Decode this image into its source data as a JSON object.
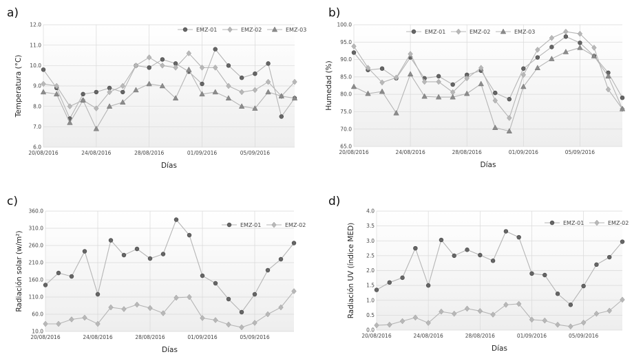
{
  "chart_data": [
    {
      "panel_label": "a)",
      "type": "line",
      "xlabel": "Días",
      "ylabel": "Temperatura (°C)",
      "ylim": [
        6.0,
        12.0
      ],
      "yticks": [
        "6.0",
        "7.0",
        "8.0",
        "9.0",
        "10.0",
        "11.0",
        "12.0"
      ],
      "xtick_labels": [
        "20/08/2016",
        "24/08/2016",
        "28/08/2016",
        "01/09/2016",
        "05/09/2016"
      ],
      "xtick_index": [
        0,
        4,
        8,
        12,
        16
      ],
      "legend_position": "top-right",
      "series": [
        {
          "name": "EMZ-01",
          "marker": "circle",
          "color": "#666666",
          "values": [
            9.8,
            8.9,
            7.4,
            8.6,
            8.7,
            8.9,
            8.7,
            10.0,
            9.9,
            10.3,
            10.1,
            9.7,
            9.1,
            10.8,
            10.0,
            9.4,
            9.6,
            10.1,
            7.5,
            8.4
          ]
        },
        {
          "name": "EMZ-02",
          "marker": "diamond",
          "color": "#b8b8b8",
          "values": [
            9.1,
            9.0,
            8.0,
            8.3,
            7.9,
            8.7,
            9.0,
            10.0,
            10.4,
            10.0,
            9.9,
            10.6,
            9.9,
            9.9,
            9.0,
            8.7,
            8.8,
            9.2,
            8.5,
            9.2
          ]
        },
        {
          "name": "EMZ-03",
          "marker": "triangle",
          "color": "#8c8c8c",
          "values": [
            8.7,
            8.6,
            7.2,
            8.3,
            6.9,
            8.0,
            8.2,
            8.8,
            9.1,
            9.0,
            8.4,
            9.8,
            8.6,
            8.7,
            8.4,
            8.0,
            7.9,
            8.7,
            8.5,
            8.4
          ]
        }
      ]
    },
    {
      "panel_label": "b)",
      "type": "line",
      "xlabel": "Días",
      "ylabel": "Humedad (%)",
      "ylim": [
        65.0,
        100.0
      ],
      "yticks": [
        "65.0",
        "70.0",
        "75.0",
        "80.0",
        "85.0",
        "90.0",
        "95.0",
        "100.0"
      ],
      "xtick_labels": [
        "20/08/2016",
        "24/08/2016",
        "28/08/2016",
        "01/09/2016",
        "05/09/2016"
      ],
      "xtick_index": [
        0,
        4,
        8,
        12,
        16
      ],
      "legend_position": "top-right",
      "series": [
        {
          "name": "EMZ-01",
          "marker": "circle",
          "color": "#666666",
          "values": [
            92.0,
            87.0,
            87.4,
            84.6,
            90.6,
            84.6,
            85.2,
            82.8,
            85.6,
            86.8,
            80.4,
            78.6,
            87.4,
            90.6,
            93.6,
            96.6,
            94.8,
            91.0,
            86.2,
            79.0
          ]
        },
        {
          "name": "EMZ-02",
          "marker": "diamond",
          "color": "#b8b8b8",
          "values": [
            93.8,
            87.6,
            83.4,
            84.8,
            91.6,
            83.6,
            83.6,
            80.6,
            84.6,
            87.6,
            78.2,
            73.2,
            85.6,
            92.8,
            96.2,
            98.0,
            97.4,
            93.4,
            81.4,
            75.8
          ]
        },
        {
          "name": "EMZ-03",
          "marker": "triangle",
          "color": "#8c8c8c",
          "values": [
            82.2,
            80.2,
            80.8,
            74.6,
            85.8,
            79.4,
            79.2,
            79.2,
            80.2,
            83.0,
            70.4,
            69.4,
            82.2,
            87.6,
            90.2,
            92.2,
            93.4,
            91.0,
            85.2,
            75.8
          ]
        }
      ]
    },
    {
      "panel_label": "c)",
      "type": "line",
      "xlabel": "Días",
      "ylabel": "Radiación solar (w/m²)",
      "ylim": [
        10.0,
        360.0
      ],
      "yticks": [
        "10.0",
        "60.0",
        "110.0",
        "160.0",
        "210.0",
        "260.0",
        "310.0",
        "360.0"
      ],
      "xtick_labels": [
        "20/08/2016",
        "24/08/2016",
        "28/08/2016",
        "01/09/2016",
        "05/09/2016"
      ],
      "xtick_index": [
        0,
        4,
        8,
        12,
        16
      ],
      "legend_position": "top-right",
      "series": [
        {
          "name": "EMZ-01",
          "marker": "circle",
          "color": "#666666",
          "values": [
            145,
            180,
            170,
            243,
            118,
            275,
            232,
            250,
            222,
            235,
            335,
            290,
            172,
            150,
            104,
            66,
            118,
            188,
            220,
            267
          ]
        },
        {
          "name": "EMZ-02",
          "marker": "diamond",
          "color": "#b8b8b8",
          "values": [
            32,
            32,
            45,
            50,
            32,
            80,
            75,
            88,
            78,
            63,
            108,
            110,
            49,
            43,
            30,
            22,
            35,
            60,
            80,
            127
          ]
        }
      ]
    },
    {
      "panel_label": "d)",
      "type": "line",
      "xlabel": "Días",
      "ylabel": "Radiación UV (índice MED)",
      "ylim": [
        0.0,
        4.0
      ],
      "yticks": [
        "0.0",
        "0.5",
        "1.0",
        "1.5",
        "2.0",
        "2.5",
        "3.0",
        "3.5",
        "4.0"
      ],
      "xtick_labels": [
        "20/08/2016",
        "24/08/2016",
        "28/08/2016",
        "01/09/2016",
        "05/09/2016"
      ],
      "xtick_index": [
        0,
        4,
        8,
        12,
        16
      ],
      "legend_position": "top-right",
      "series": [
        {
          "name": "EMZ-01",
          "marker": "circle",
          "color": "#666666",
          "values": [
            1.35,
            1.6,
            1.76,
            2.75,
            1.5,
            3.03,
            2.5,
            2.7,
            2.52,
            2.33,
            3.32,
            3.12,
            1.9,
            1.85,
            1.22,
            0.85,
            1.48,
            2.2,
            2.45,
            2.97
          ]
        },
        {
          "name": "EMZ-02",
          "marker": "diamond",
          "color": "#b8b8b8",
          "values": [
            0.16,
            0.18,
            0.3,
            0.42,
            0.24,
            0.62,
            0.55,
            0.72,
            0.64,
            0.52,
            0.85,
            0.88,
            0.35,
            0.32,
            0.18,
            0.12,
            0.25,
            0.55,
            0.65,
            1.02
          ]
        }
      ]
    }
  ]
}
